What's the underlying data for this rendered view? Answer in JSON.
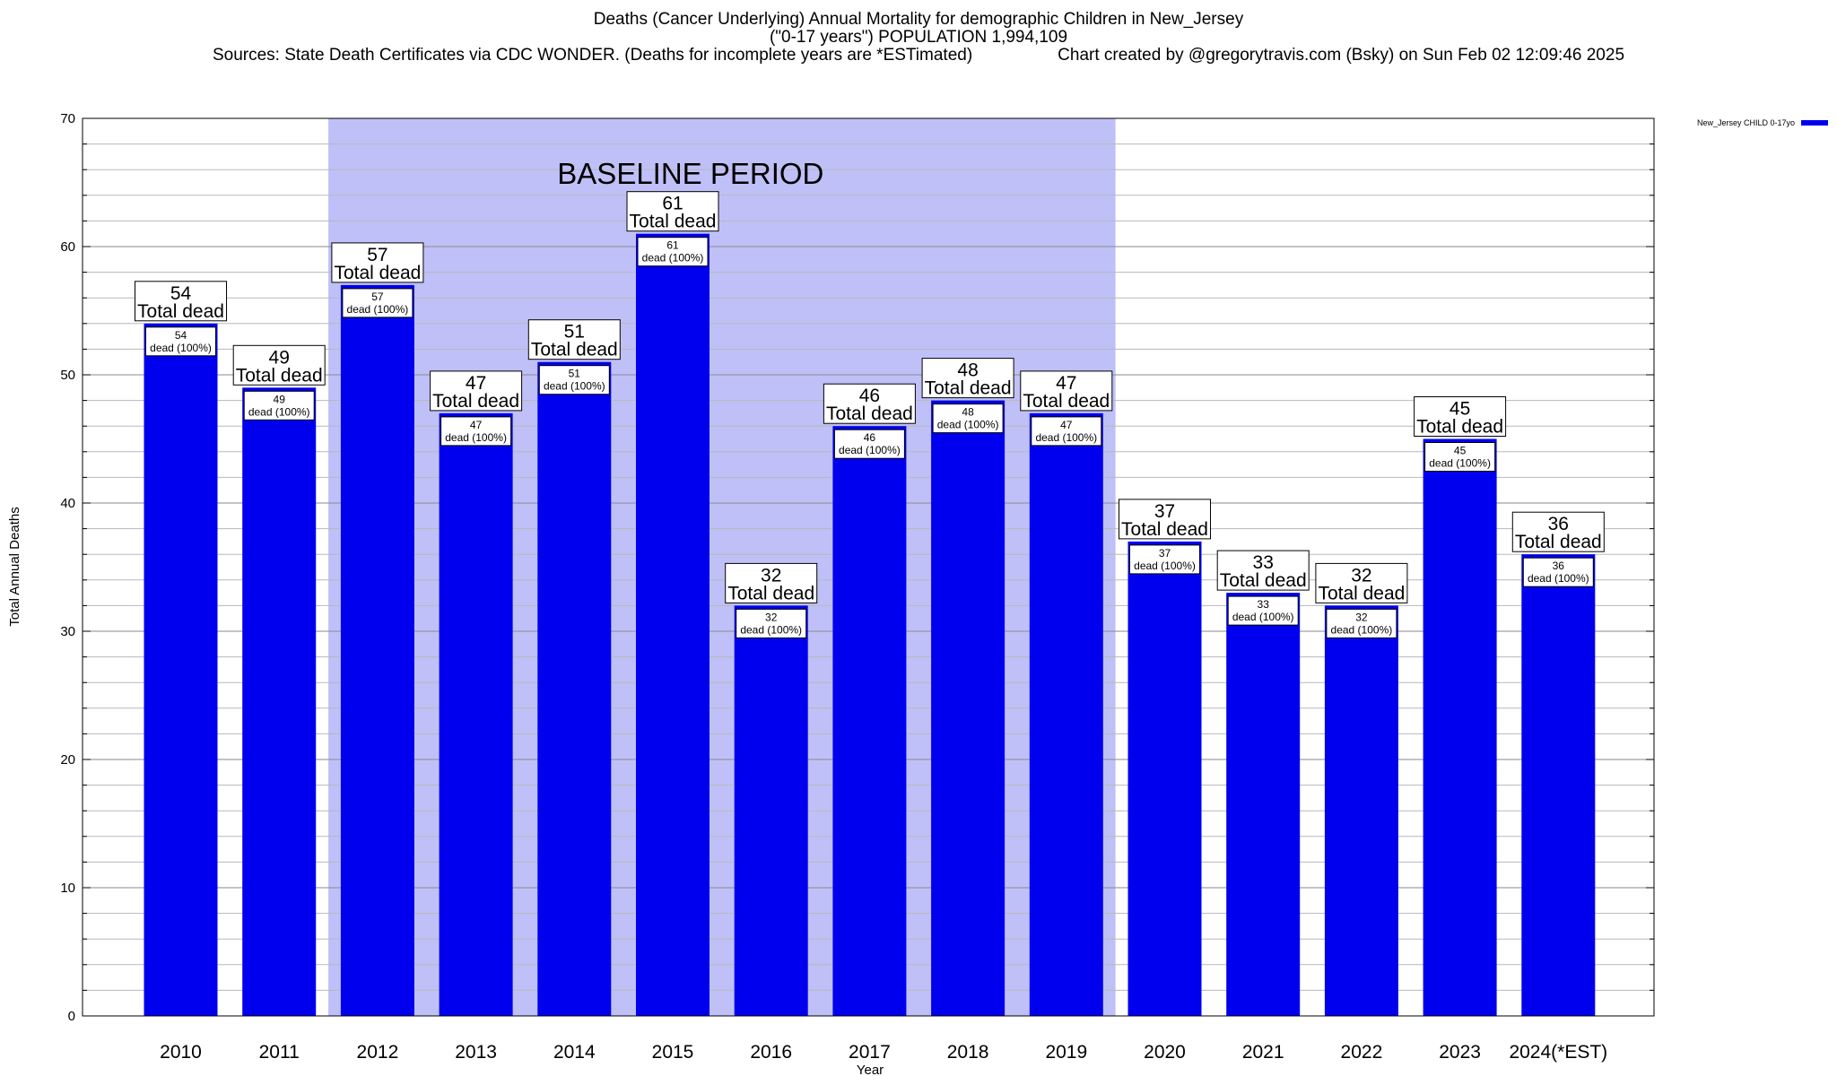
{
  "chart_data": {
    "type": "bar",
    "title": "Deaths (Cancer Underlying) Annual Mortality for demographic Children in New_Jersey",
    "subtitle": "(\"0-17 years\") POPULATION 1,994,109",
    "source_line": "Sources: State Death Certificates via CDC WONDER. (Deaths for incomplete years are *ESTimated)",
    "credit_line": "Chart created by @gregorytravis.com (Bsky) on Sun Feb 02 12:09:46 2025",
    "xlabel": "Year",
    "ylabel": "Total Annual Deaths",
    "ylim": [
      0,
      70
    ],
    "yticks": [
      0,
      10,
      20,
      30,
      40,
      50,
      60,
      70
    ],
    "grid": true,
    "categories": [
      "2010",
      "2011",
      "2012",
      "2013",
      "2014",
      "2015",
      "2016",
      "2017",
      "2018",
      "2019",
      "2020",
      "2021",
      "2022",
      "2023",
      "2024(*EST)"
    ],
    "series": [
      {
        "name": "New_Jersey CHILD 0-17yo",
        "color": "#0000ee",
        "values": [
          54,
          49,
          57,
          47,
          51,
          61,
          32,
          46,
          48,
          47,
          37,
          33,
          32,
          45,
          36
        ]
      }
    ],
    "bar_top_label": "Total dead",
    "bar_inner_label": "dead (100%)",
    "highlight_region": {
      "label": "BASELINE PERIOD",
      "from_category": "2012",
      "to_category": "2019",
      "color": "#c0c0f8"
    },
    "legend_placement": "top-right"
  }
}
